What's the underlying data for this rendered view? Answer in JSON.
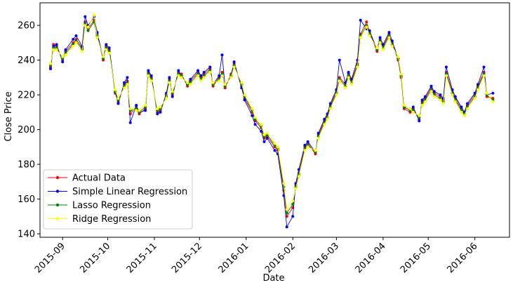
{
  "chart_data": {
    "type": "line",
    "xlabel": "Date",
    "ylabel": "Close Price",
    "xlim": [
      "2015-08-17",
      "2016-06-24"
    ],
    "ylim": [
      138,
      273
    ],
    "x_ticks": [
      "2015-09",
      "2015-10",
      "2015-11",
      "2015-12",
      "2016-01",
      "2016-02",
      "2016-03",
      "2016-04",
      "2016-05",
      "2016-06"
    ],
    "y_ticks": [
      140,
      160,
      180,
      200,
      220,
      240,
      260
    ],
    "grid": false,
    "legend_position": "lower-left",
    "x": [
      "2015-08-24",
      "2015-08-26",
      "2015-08-28",
      "2015-09-01",
      "2015-09-03",
      "2015-09-08",
      "2015-09-10",
      "2015-09-14",
      "2015-09-16",
      "2015-09-18",
      "2015-09-22",
      "2015-09-24",
      "2015-09-28",
      "2015-09-30",
      "2015-10-02",
      "2015-10-06",
      "2015-10-08",
      "2015-10-12",
      "2015-10-14",
      "2015-10-16",
      "2015-10-20",
      "2015-10-22",
      "2015-10-26",
      "2015-10-28",
      "2015-10-30",
      "2015-11-03",
      "2015-11-05",
      "2015-11-09",
      "2015-11-11",
      "2015-11-13",
      "2015-11-17",
      "2015-11-19",
      "2015-11-23",
      "2015-11-25",
      "2015-11-30",
      "2015-12-02",
      "2015-12-04",
      "2015-12-08",
      "2015-12-10",
      "2015-12-14",
      "2015-12-16",
      "2015-12-18",
      "2015-12-22",
      "2015-12-24",
      "2015-12-29",
      "2015-12-31",
      "2016-01-05",
      "2016-01-07",
      "2016-01-11",
      "2016-01-13",
      "2016-01-15",
      "2016-01-20",
      "2016-01-22",
      "2016-01-26",
      "2016-01-28",
      "2016-02-01",
      "2016-02-03",
      "2016-02-05",
      "2016-02-09",
      "2016-02-11",
      "2016-02-16",
      "2016-02-18",
      "2016-02-22",
      "2016-02-24",
      "2016-02-26",
      "2016-03-01",
      "2016-03-03",
      "2016-03-07",
      "2016-03-09",
      "2016-03-11",
      "2016-03-15",
      "2016-03-17",
      "2016-03-21",
      "2016-03-23",
      "2016-03-28",
      "2016-03-30",
      "2016-04-01",
      "2016-04-05",
      "2016-04-07",
      "2016-04-11",
      "2016-04-13",
      "2016-04-15",
      "2016-04-19",
      "2016-04-21",
      "2016-04-25",
      "2016-04-27",
      "2016-04-29",
      "2016-05-03",
      "2016-05-05",
      "2016-05-09",
      "2016-05-11",
      "2016-05-13",
      "2016-05-17",
      "2016-05-19",
      "2016-05-23",
      "2016-05-25",
      "2016-05-27",
      "2016-06-01",
      "2016-06-03",
      "2016-06-07",
      "2016-06-09",
      "2016-06-13"
    ],
    "series": [
      {
        "name": "Actual Data",
        "color": "#ff0000",
        "values": [
          236,
          249,
          248,
          240,
          245,
          250,
          252,
          247,
          262,
          258,
          263,
          255,
          240,
          248,
          246,
          221,
          216,
          226,
          228,
          209,
          213,
          209,
          212,
          233,
          230,
          210,
          211,
          220,
          229,
          220,
          233,
          232,
          225,
          228,
          233,
          230,
          232,
          235,
          225,
          230,
          233,
          224,
          232,
          238,
          225,
          218,
          210,
          205,
          201,
          195,
          196,
          190,
          188,
          165,
          150,
          155,
          168,
          175,
          190,
          192,
          186,
          197,
          205,
          208,
          214,
          222,
          230,
          226,
          232,
          228,
          238,
          255,
          262,
          256,
          245,
          252,
          248,
          255,
          250,
          240,
          230,
          212,
          210,
          212,
          206,
          216,
          218,
          224,
          221,
          219,
          217,
          233,
          222,
          218,
          212,
          210,
          214,
          220,
          225,
          233,
          219,
          218
        ]
      },
      {
        "name": "Simple Linear Regression",
        "color": "#0000ff",
        "values": [
          235,
          248,
          249,
          239,
          246,
          252,
          254,
          248,
          265,
          260,
          265,
          256,
          241,
          249,
          247,
          222,
          215,
          227,
          230,
          204,
          214,
          210,
          211,
          234,
          231,
          209,
          210,
          221,
          230,
          219,
          234,
          231,
          226,
          229,
          234,
          231,
          233,
          236,
          226,
          231,
          243,
          225,
          231,
          239,
          224,
          217,
          208,
          203,
          199,
          193,
          195,
          188,
          186,
          162,
          144,
          150,
          169,
          177,
          191,
          193,
          187,
          198,
          206,
          209,
          215,
          223,
          240,
          227,
          233,
          229,
          240,
          263,
          258,
          257,
          246,
          253,
          249,
          256,
          251,
          241,
          231,
          213,
          211,
          213,
          205,
          217,
          219,
          225,
          222,
          220,
          218,
          236,
          223,
          219,
          213,
          210,
          215,
          221,
          226,
          236,
          220,
          221
        ]
      },
      {
        "name": "Lasso Regression",
        "color": "#008000",
        "values": [
          237,
          247,
          247,
          241,
          244,
          249,
          251,
          246,
          261,
          257,
          262,
          254,
          241,
          247,
          245,
          222,
          217,
          225,
          227,
          211,
          212,
          210,
          213,
          232,
          229,
          211,
          212,
          219,
          228,
          221,
          232,
          231,
          226,
          227,
          232,
          229,
          231,
          234,
          226,
          229,
          232,
          225,
          231,
          237,
          226,
          219,
          211,
          206,
          202,
          196,
          197,
          191,
          189,
          167,
          152,
          157,
          167,
          174,
          189,
          191,
          187,
          196,
          204,
          207,
          213,
          221,
          229,
          225,
          231,
          227,
          237,
          254,
          260,
          255,
          246,
          251,
          247,
          254,
          249,
          241,
          231,
          213,
          211,
          211,
          207,
          215,
          217,
          223,
          220,
          218,
          216,
          232,
          221,
          217,
          211,
          209,
          213,
          219,
          224,
          232,
          220,
          217
        ]
      },
      {
        "name": "Ridge Regression",
        "color": "#ffff00",
        "values": [
          238,
          246,
          246,
          242,
          243,
          248,
          250,
          245,
          260,
          259,
          266,
          253,
          242,
          246,
          244,
          223,
          218,
          224,
          226,
          212,
          211,
          211,
          214,
          231,
          228,
          212,
          213,
          218,
          227,
          222,
          231,
          230,
          227,
          226,
          231,
          228,
          230,
          233,
          227,
          228,
          231,
          226,
          230,
          236,
          227,
          220,
          212,
          207,
          203,
          197,
          198,
          192,
          190,
          169,
          154,
          159,
          166,
          173,
          188,
          190,
          188,
          195,
          203,
          206,
          212,
          220,
          228,
          224,
          230,
          226,
          236,
          253,
          259,
          254,
          247,
          250,
          246,
          253,
          248,
          242,
          232,
          214,
          212,
          210,
          208,
          214,
          216,
          222,
          219,
          217,
          215,
          231,
          220,
          216,
          210,
          208,
          212,
          218,
          223,
          231,
          221,
          216
        ]
      }
    ]
  }
}
